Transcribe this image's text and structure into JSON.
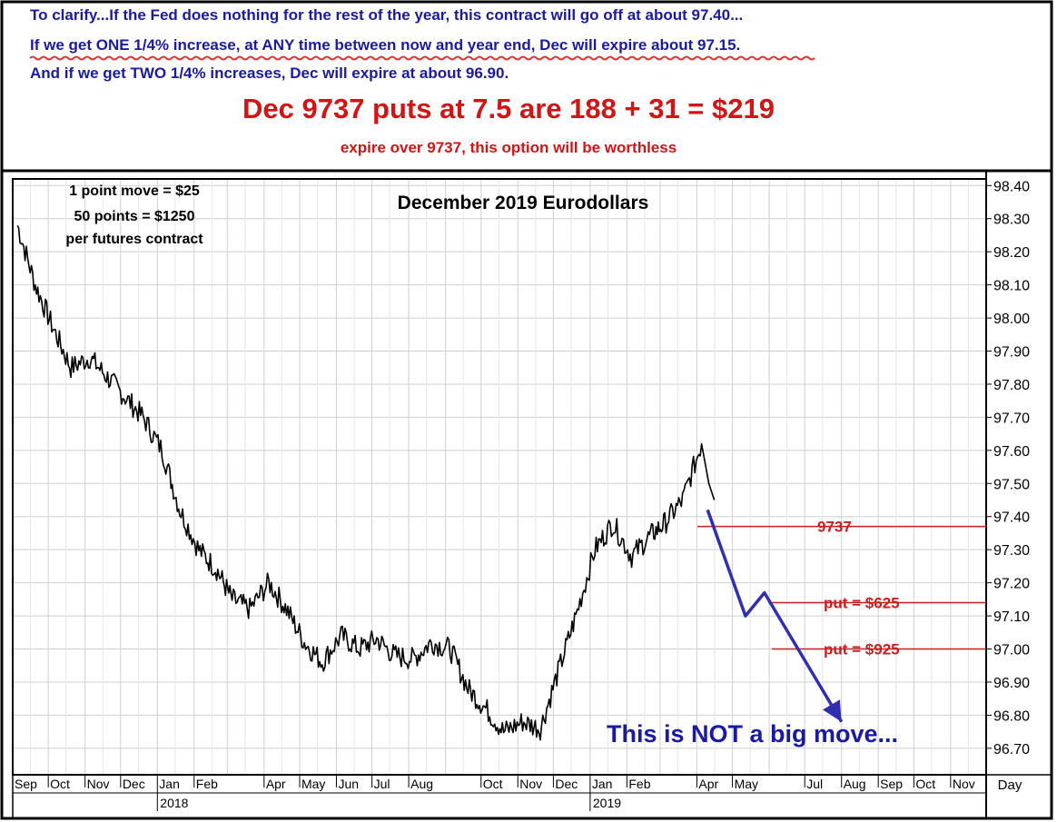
{
  "header": {
    "line1": "To clarify...If the Fed does nothing for the rest of the year, this contract will go off at about 97.40...",
    "line2": "If we get ONE 1/4%  increase, at ANY time between now and year end, Dec will expire about 97.15.",
    "line3": "And if we get TWO 1/4% increases, Dec will expire at about 96.90.",
    "headline": "Dec 9737 puts at 7.5 are 188 + 31 = $219",
    "subline": "expire over 9737, this option will be worthless",
    "colors": {
      "blue_text": "#1a1aa0",
      "red_text": "#d21414",
      "squiggle": "#e03030"
    }
  },
  "chart_data": {
    "type": "line",
    "title": "December 2019 Eurodollars",
    "note_lines": [
      "1 point move = $25",
      "50 points = $1250",
      "per futures contract"
    ],
    "y_axis": {
      "range": [
        96.62,
        98.42
      ],
      "ticks": [
        "98.40",
        "98.30",
        "98.20",
        "98.10",
        "98.00",
        "97.90",
        "97.80",
        "97.70",
        "97.60",
        "97.50",
        "97.40",
        "97.30",
        "97.20",
        "97.10",
        "97.00",
        "96.90",
        "96.80",
        "96.70"
      ],
      "position": "right"
    },
    "x_axis": {
      "months": [
        "Sep",
        "Oct",
        "Nov",
        "Dec",
        "Jan",
        "Feb",
        "Apr",
        "May",
        "Jun",
        "Jul",
        "Aug",
        "Oct",
        "Nov",
        "Dec",
        "Jan",
        "Feb",
        "Apr",
        "May",
        "Jul",
        "Aug",
        "Sep",
        "Oct",
        "Nov"
      ],
      "years": [
        "2018",
        "2019"
      ],
      "period_label": "Day"
    },
    "grid": true,
    "series": [
      {
        "x": [
          "2017-09-05",
          "2017-09-20",
          "2017-10-05",
          "2017-10-20",
          "2017-11-05",
          "2017-11-20",
          "2017-12-05",
          "2017-12-20",
          "2018-01-05",
          "2018-01-20",
          "2018-02-05",
          "2018-02-20",
          "2018-03-05",
          "2018-03-20",
          "2018-04-05",
          "2018-04-20",
          "2018-05-05",
          "2018-05-20",
          "2018-06-05",
          "2018-06-20",
          "2018-07-05",
          "2018-07-20",
          "2018-08-05",
          "2018-08-20",
          "2018-09-05",
          "2018-09-20",
          "2018-10-05",
          "2018-10-20",
          "2018-11-05",
          "2018-11-20",
          "2018-12-05",
          "2018-12-20",
          "2019-01-05",
          "2019-01-20",
          "2019-02-05",
          "2019-02-20",
          "2019-03-05",
          "2019-03-20",
          "2019-04-05"
        ],
        "y": [
          98.28,
          98.1,
          97.97,
          97.85,
          97.88,
          97.82,
          97.76,
          97.7,
          97.6,
          97.42,
          97.3,
          97.24,
          97.15,
          97.12,
          97.2,
          97.12,
          97.02,
          96.96,
          97.04,
          97.0,
          97.03,
          96.98,
          96.97,
          97.02,
          97.0,
          96.88,
          96.82,
          96.75,
          96.78,
          96.76,
          96.93,
          97.1,
          97.3,
          97.38,
          97.28,
          97.34,
          97.38,
          97.45,
          97.62
        ]
      }
    ],
    "annotations": {
      "levels": [
        {
          "label": "9737",
          "value": 97.37
        },
        {
          "label": "put = $625",
          "value": 97.14
        },
        {
          "label": "put = $925",
          "value": 97.0
        }
      ],
      "arrow_path": [
        {
          "x": "2019-04-10",
          "y": 97.42
        },
        {
          "x": "2019-05-12",
          "y": 97.1
        },
        {
          "x": "2019-05-28",
          "y": 97.17
        },
        {
          "x": "2019-08-01",
          "y": 96.78
        }
      ],
      "callout": "This is NOT a big move..."
    },
    "colors": {
      "price": "#000000",
      "level_line": "#c81e1e",
      "arrow": "#2f2fb4",
      "callout_text": "#1a1aa0",
      "grid": "#cfcfcf"
    }
  }
}
